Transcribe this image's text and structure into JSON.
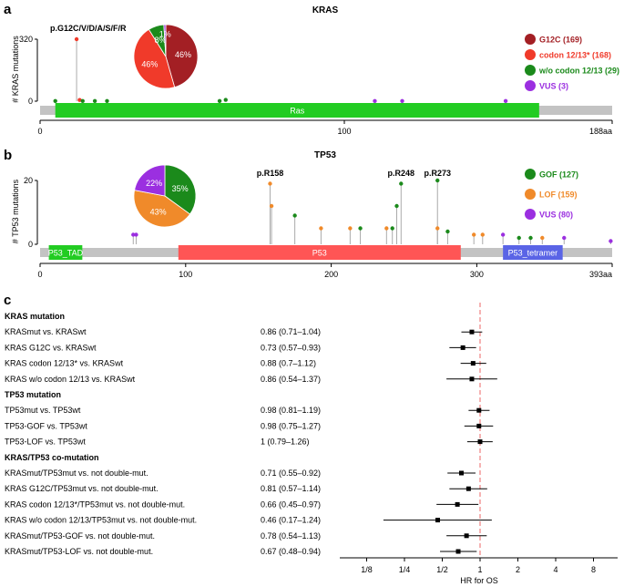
{
  "panel_a": {
    "letter": "a",
    "title": "KRAS",
    "ylabel": "# KRAS mutations",
    "yticks": [
      "320",
      "0"
    ],
    "xticks": [
      "0",
      "100",
      "188aa"
    ],
    "domain_label": "Ras",
    "hotspot_label": "p.G12C/V/D/A/S/F/R",
    "pie_labels": [
      "46%",
      "46%",
      "8%",
      "1%"
    ],
    "legend": [
      {
        "label": "G12C (169)",
        "color": "#a31f24"
      },
      {
        "label": "codon 12/13* (168)",
        "color": "#f03a2a"
      },
      {
        "label": "w/o codon 12/13 (29)",
        "color": "#1b8a1b"
      },
      {
        "label": "VUS (3)",
        "color": "#9b2fe0"
      }
    ]
  },
  "panel_b": {
    "letter": "b",
    "title": "TP53",
    "ylabel": "# TP53 mutations",
    "yticks": [
      "20",
      "0"
    ],
    "xticks": [
      "0",
      "100",
      "200",
      "300",
      "393aa"
    ],
    "domains": [
      {
        "label": "P53_TAD",
        "color": "#22cc22"
      },
      {
        "label": "P53",
        "color": "#ff5555"
      },
      {
        "label": "P53_tetramer",
        "color": "#5a64e6"
      }
    ],
    "hotspot_labels": [
      "p.R158",
      "p.R248",
      "p.R273"
    ],
    "pie_labels": [
      "35%",
      "43%",
      "22%"
    ],
    "legend": [
      {
        "label": "GOF (127)",
        "color": "#1b8a1b"
      },
      {
        "label": "LOF (159)",
        "color": "#f08a2a"
      },
      {
        "label": "VUS (80)",
        "color": "#9b2fe0"
      }
    ]
  },
  "panel_c": {
    "letter": "c",
    "xlabel": "HR for OS",
    "groups": [
      {
        "heading": "KRAS mutation",
        "rows": [
          {
            "label": "KRASmut vs. KRASwt",
            "text": "0.86 (0.71–1.04)"
          },
          {
            "label": "KRAS G12C vs. KRASwt",
            "text": "0.73 (0.57–0.93)"
          },
          {
            "label": "KRAS codon 12/13* vs. KRASwt",
            "text": "0.88 (0.7–1.12)"
          },
          {
            "label": "KRAS w/o codon 12/13 vs. KRASwt",
            "text": "0.86 (0.54–1.37)"
          }
        ]
      },
      {
        "heading": "TP53 mutation",
        "rows": [
          {
            "label": "TP53mut vs. TP53wt",
            "text": "0.98 (0.81–1.19)"
          },
          {
            "label": "TP53-GOF vs. TP53wt",
            "text": "0.98 (0.75–1.27)"
          },
          {
            "label": "TP53-LOF vs. TP53wt",
            "text": "1 (0.79–1.26)"
          }
        ]
      },
      {
        "heading": "KRAS/TP53 co-mutation",
        "rows": [
          {
            "label": "KRASmut/TP53mut vs. not double-mut.",
            "text": "0.71 (0.55–0.92)"
          },
          {
            "label": "KRAS G12C/TP53mut vs. not double-mut.",
            "text": "0.81 (0.57–1.14)"
          },
          {
            "label": "KRAS codon 12/13*/TP53mut vs. not double-mut.",
            "text": "0.66 (0.45–0.97)"
          },
          {
            "label": "KRAS w/o codon 12/13/TP53mut vs. not double-mut.",
            "text": "0.46 (0.17–1.24)"
          },
          {
            "label": "KRASmut/TP53-GOF vs. not double-mut.",
            "text": "0.78 (0.54–1.13)"
          },
          {
            "label": "KRASmut/TP53-LOF vs. not double-mut.",
            "text": "0.67 (0.48–0.94)"
          }
        ]
      }
    ],
    "xtick_labels": [
      "1/8",
      "1/4",
      "1/2",
      "1",
      "2",
      "4",
      "8"
    ]
  },
  "chart_data": [
    {
      "type": "scatter",
      "title": "KRAS",
      "ylabel": "# KRAS mutations",
      "xlim": [
        0,
        188
      ],
      "ylim": [
        0,
        320
      ],
      "domains": [
        {
          "name": "Ras",
          "start": 5,
          "end": 164
        }
      ],
      "lollipops": [
        {
          "x": 5,
          "y": 1,
          "class": "w/o codon 12/13"
        },
        {
          "x": 12,
          "y": 320,
          "class": "codon 12/13*"
        },
        {
          "x": 13,
          "y": 6,
          "class": "codon 12/13*"
        },
        {
          "x": 14,
          "y": 1,
          "class": "w/o codon 12/13"
        },
        {
          "x": 18,
          "y": 1,
          "class": "w/o codon 12/13"
        },
        {
          "x": 22,
          "y": 1,
          "class": "w/o codon 12/13"
        },
        {
          "x": 59,
          "y": 1,
          "class": "w/o codon 12/13"
        },
        {
          "x": 61,
          "y": 7,
          "class": "w/o codon 12/13"
        },
        {
          "x": 110,
          "y": 1,
          "class": "VUS"
        },
        {
          "x": 119,
          "y": 1,
          "class": "VUS"
        },
        {
          "x": 153,
          "y": 1,
          "class": "VUS"
        }
      ],
      "pie": [
        {
          "name": "G12C",
          "value": 46
        },
        {
          "name": "codon 12/13*",
          "value": 46
        },
        {
          "name": "w/o codon 12/13",
          "value": 8
        },
        {
          "name": "VUS",
          "value": 1
        }
      ]
    },
    {
      "type": "scatter",
      "title": "TP53",
      "ylabel": "# TP53 mutations",
      "xlim": [
        0,
        393
      ],
      "ylim": [
        0,
        20
      ],
      "domains": [
        {
          "name": "P53_TAD",
          "start": 6,
          "end": 29
        },
        {
          "name": "P53",
          "start": 95,
          "end": 289
        },
        {
          "name": "P53_tetramer",
          "start": 318,
          "end": 359
        }
      ],
      "lollipops": [
        {
          "x": 158,
          "y": 19,
          "class": "LOF"
        },
        {
          "x": 159,
          "y": 12,
          "class": "LOF"
        },
        {
          "x": 175,
          "y": 9,
          "class": "GOF"
        },
        {
          "x": 245,
          "y": 12,
          "class": "GOF"
        },
        {
          "x": 248,
          "y": 19,
          "class": "GOF"
        },
        {
          "x": 273,
          "y": 20,
          "class": "GOF"
        },
        {
          "x": 193,
          "y": 5,
          "class": "LOF"
        },
        {
          "x": 213,
          "y": 5,
          "class": "LOF"
        },
        {
          "x": 220,
          "y": 5,
          "class": "GOF"
        },
        {
          "x": 238,
          "y": 5,
          "class": "LOF"
        },
        {
          "x": 242,
          "y": 5,
          "class": "GOF"
        },
        {
          "x": 273,
          "y": 5,
          "class": "LOF"
        },
        {
          "x": 280,
          "y": 4,
          "class": "GOF"
        },
        {
          "x": 64,
          "y": 3,
          "class": "VUS"
        },
        {
          "x": 66,
          "y": 3,
          "class": "VUS"
        },
        {
          "x": 298,
          "y": 3,
          "class": "LOF"
        },
        {
          "x": 304,
          "y": 3,
          "class": "LOF"
        },
        {
          "x": 318,
          "y": 3,
          "class": "VUS"
        },
        {
          "x": 329,
          "y": 2,
          "class": "GOF"
        },
        {
          "x": 337,
          "y": 2,
          "class": "GOF"
        },
        {
          "x": 345,
          "y": 2,
          "class": "LOF"
        },
        {
          "x": 360,
          "y": 2,
          "class": "VUS"
        },
        {
          "x": 392,
          "y": 1,
          "class": "VUS"
        }
      ],
      "pie": [
        {
          "name": "GOF",
          "value": 35
        },
        {
          "name": "LOF",
          "value": 43
        },
        {
          "name": "VUS",
          "value": 22
        }
      ]
    },
    {
      "type": "scatter",
      "xlabel": "HR for OS",
      "xscale": "log2",
      "xlim": [
        0.08,
        12
      ],
      "x_ticks": [
        0.125,
        0.25,
        0.5,
        1,
        2,
        4,
        8
      ],
      "reference_line": 1,
      "series": [
        {
          "name": "KRASmut vs. KRASwt",
          "hr": 0.86,
          "lower": 0.71,
          "upper": 1.04
        },
        {
          "name": "KRAS G12C vs. KRASwt",
          "hr": 0.73,
          "lower": 0.57,
          "upper": 0.93
        },
        {
          "name": "KRAS codon 12/13* vs. KRASwt",
          "hr": 0.88,
          "lower": 0.7,
          "upper": 1.12
        },
        {
          "name": "KRAS w/o codon 12/13 vs. KRASwt",
          "hr": 0.86,
          "lower": 0.54,
          "upper": 1.37
        },
        {
          "name": "TP53mut vs. TP53wt",
          "hr": 0.98,
          "lower": 0.81,
          "upper": 1.19
        },
        {
          "name": "TP53-GOF vs. TP53wt",
          "hr": 0.98,
          "lower": 0.75,
          "upper": 1.27
        },
        {
          "name": "TP53-LOF vs. TP53wt",
          "hr": 1,
          "lower": 0.79,
          "upper": 1.26
        },
        {
          "name": "KRASmut/TP53mut vs. not double-mut.",
          "hr": 0.71,
          "lower": 0.55,
          "upper": 0.92
        },
        {
          "name": "KRAS G12C/TP53mut vs. not double-mut.",
          "hr": 0.81,
          "lower": 0.57,
          "upper": 1.14
        },
        {
          "name": "KRAS codon 12/13*/TP53mut vs. not double-mut.",
          "hr": 0.66,
          "lower": 0.45,
          "upper": 0.97
        },
        {
          "name": "KRAS w/o codon 12/13/TP53mut vs. not double-mut.",
          "hr": 0.46,
          "lower": 0.17,
          "upper": 1.24
        },
        {
          "name": "KRASmut/TP53-GOF vs. not double-mut.",
          "hr": 0.78,
          "lower": 0.54,
          "upper": 1.13
        },
        {
          "name": "KRASmut/TP53-LOF vs. not double-mut.",
          "hr": 0.67,
          "lower": 0.48,
          "upper": 0.94
        }
      ]
    }
  ]
}
